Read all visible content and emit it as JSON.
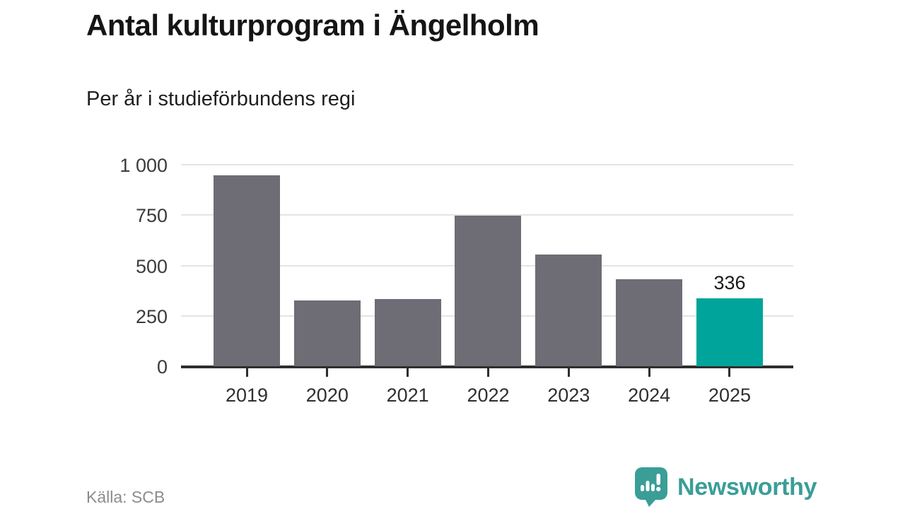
{
  "header": {
    "title": "Antal kulturprogram i Ängelholm",
    "subtitle": "Per år i studieförbundens regi"
  },
  "footer": {
    "source": "Källa: SCB",
    "brand": "Newsworthy"
  },
  "colors": {
    "bar": "#6e6c75",
    "highlight": "#00a49b",
    "grid": "#e4e4e6",
    "axis": "#2e2e2e",
    "brand_teal": "#3a9e97"
  },
  "chart_data": {
    "type": "bar",
    "title": "Antal kulturprogram i Ängelholm",
    "subtitle": "Per år i studieförbundens regi",
    "categories": [
      "2019",
      "2020",
      "2021",
      "2022",
      "2023",
      "2024",
      "2025"
    ],
    "values": [
      949,
      326,
      335,
      748,
      553,
      432,
      336
    ],
    "highlight_index": 6,
    "data_label": {
      "index": 6,
      "text": "336"
    },
    "yticks": [
      0,
      250,
      500,
      750,
      1000
    ],
    "ytick_labels": [
      "0",
      "250",
      "500",
      "750",
      "1 000"
    ],
    "ylim": [
      0,
      1000
    ],
    "grid": true,
    "legend": "none",
    "xlabel": "",
    "ylabel": "",
    "source": "Källa: SCB"
  }
}
